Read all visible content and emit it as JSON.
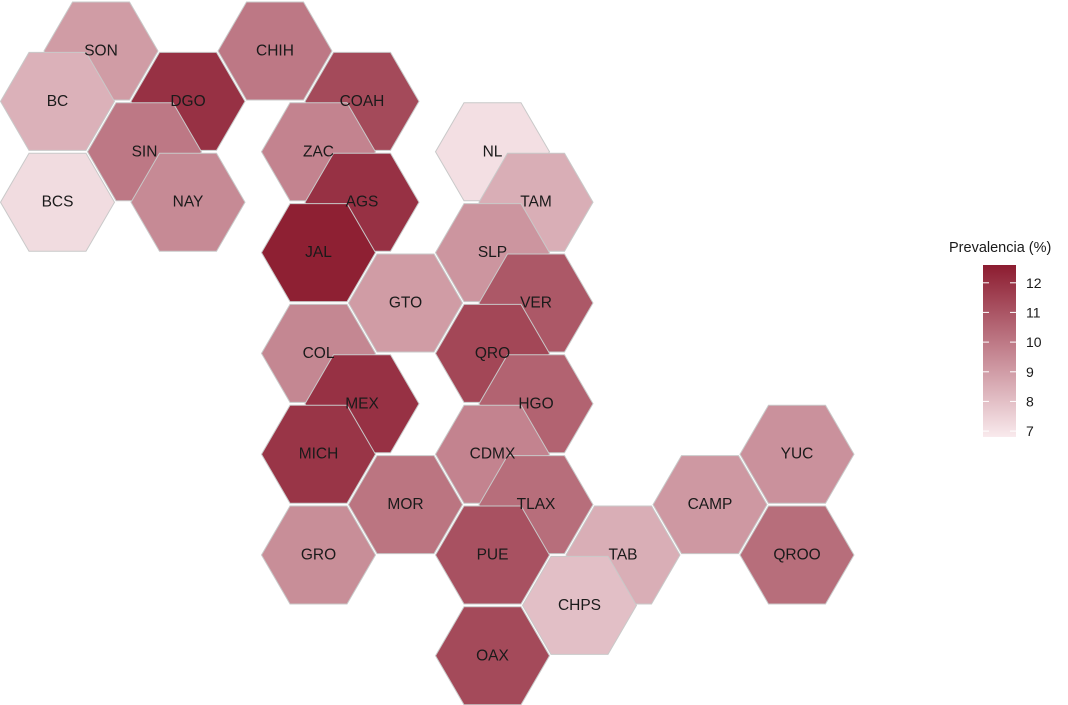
{
  "map_data": {
    "type": "hexbin-choropleth",
    "value_range": [
      6.8,
      12.6
    ],
    "color_low": "#f9eaed",
    "color_high": "#8c1c30",
    "legend": {
      "title": "Prevalencia (%)",
      "ticks": [
        7,
        8,
        9,
        10,
        11,
        12
      ],
      "tick_labels": [
        "7",
        "8",
        "9",
        "10",
        "11",
        "12"
      ]
    },
    "states": [
      {
        "id": "SON",
        "label": "SON",
        "col": 2,
        "row": 0,
        "value": 9.0
      },
      {
        "id": "CHIH",
        "label": "CHIH",
        "col": 6,
        "row": 0,
        "value": 10.0
      },
      {
        "id": "BC",
        "label": "BC",
        "col": 1,
        "row": 1,
        "value": 8.4
      },
      {
        "id": "DGO",
        "label": "DGO",
        "col": 4,
        "row": 1,
        "value": 12.0
      },
      {
        "id": "COAH",
        "label": "COAH",
        "col": 8,
        "row": 1,
        "value": 11.3
      },
      {
        "id": "SIN",
        "label": "SIN",
        "col": 3,
        "row": 2,
        "value": 10.0
      },
      {
        "id": "ZAC",
        "label": "ZAC",
        "col": 7,
        "row": 2,
        "value": 9.7
      },
      {
        "id": "NL",
        "label": "NL",
        "col": 11,
        "row": 2,
        "value": 7.1
      },
      {
        "id": "BCS",
        "label": "BCS",
        "col": 1,
        "row": 3,
        "value": 7.2
      },
      {
        "id": "NAY",
        "label": "NAY",
        "col": 4,
        "row": 3,
        "value": 9.5
      },
      {
        "id": "AGS",
        "label": "AGS",
        "col": 8,
        "row": 3,
        "value": 12.0
      },
      {
        "id": "TAM",
        "label": "TAM",
        "col": 12,
        "row": 3,
        "value": 8.5
      },
      {
        "id": "JAL",
        "label": "JAL",
        "col": 7,
        "row": 4,
        "value": 12.5
      },
      {
        "id": "SLP",
        "label": "SLP",
        "col": 11,
        "row": 4,
        "value": 9.2
      },
      {
        "id": "GTO",
        "label": "GTO",
        "col": 9,
        "row": 5,
        "value": 9.0
      },
      {
        "id": "VER",
        "label": "VER",
        "col": 12,
        "row": 5,
        "value": 10.9
      },
      {
        "id": "COL",
        "label": "COL",
        "col": 7,
        "row": 6,
        "value": 9.6
      },
      {
        "id": "QRO",
        "label": "QRO",
        "col": 11,
        "row": 6,
        "value": 11.4
      },
      {
        "id": "MEX",
        "label": "MEX",
        "col": 8,
        "row": 7,
        "value": 12.0
      },
      {
        "id": "HGO",
        "label": "HGO",
        "col": 12,
        "row": 7,
        "value": 10.6
      },
      {
        "id": "MICH",
        "label": "MICH",
        "col": 7,
        "row": 8,
        "value": 11.9
      },
      {
        "id": "CDMX",
        "label": "CDMX",
        "col": 11,
        "row": 8,
        "value": 9.7
      },
      {
        "id": "YUC",
        "label": "YUC",
        "col": 18,
        "row": 8,
        "value": 9.3
      },
      {
        "id": "MOR",
        "label": "MOR",
        "col": 9,
        "row": 9,
        "value": 10.1
      },
      {
        "id": "TLAX",
        "label": "TLAX",
        "col": 12,
        "row": 9,
        "value": 10.3
      },
      {
        "id": "CAMP",
        "label": "CAMP",
        "col": 16,
        "row": 9,
        "value": 9.1
      },
      {
        "id": "GRO",
        "label": "GRO",
        "col": 7,
        "row": 10,
        "value": 9.4
      },
      {
        "id": "PUE",
        "label": "PUE",
        "col": 11,
        "row": 10,
        "value": 11.1
      },
      {
        "id": "TAB",
        "label": "TAB",
        "col": 14,
        "row": 10,
        "value": 8.5
      },
      {
        "id": "QROO",
        "label": "QROO",
        "col": 18,
        "row": 10,
        "value": 10.3
      },
      {
        "id": "CHPS",
        "label": "CHPS",
        "col": 13,
        "row": 11,
        "value": 8.0
      },
      {
        "id": "OAX",
        "label": "OAX",
        "col": 11,
        "row": 12,
        "value": 11.3
      }
    ]
  }
}
